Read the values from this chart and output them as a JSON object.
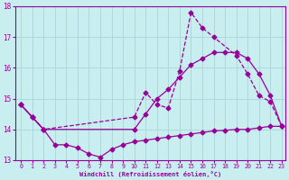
{
  "xlabel": "Windchill (Refroidissement éolien,°C)",
  "bg_color": "#c8eef0",
  "grid_color": "#aed8da",
  "line_color": "#990099",
  "xlim": [
    -0.5,
    23.3
  ],
  "ylim": [
    13,
    18
  ],
  "yticks": [
    13,
    14,
    15,
    16,
    17,
    18
  ],
  "xticks": [
    0,
    1,
    2,
    3,
    4,
    5,
    6,
    7,
    8,
    9,
    10,
    11,
    12,
    13,
    14,
    15,
    16,
    17,
    18,
    19,
    20,
    21,
    22,
    23
  ],
  "series1_x": [
    0,
    1,
    2,
    10,
    11,
    12,
    13,
    14,
    15,
    16,
    17,
    19,
    20,
    21,
    22,
    23
  ],
  "series1_y": [
    14.8,
    14.4,
    14.0,
    14.4,
    15.2,
    14.8,
    14.7,
    15.9,
    17.8,
    17.3,
    17.0,
    16.4,
    15.8,
    15.1,
    14.9,
    14.1
  ],
  "series2_x": [
    0,
    1,
    2,
    10,
    11,
    12,
    13,
    14,
    15,
    16,
    17,
    18,
    19,
    20,
    21,
    22,
    23
  ],
  "series2_y": [
    14.8,
    14.4,
    14.0,
    14.0,
    14.5,
    15.0,
    15.3,
    15.7,
    16.1,
    16.3,
    16.5,
    16.5,
    16.5,
    16.3,
    15.8,
    15.1,
    14.1
  ],
  "series3_x": [
    0,
    1,
    2,
    3,
    4,
    5,
    6,
    7,
    8,
    9,
    10,
    11,
    12,
    13,
    14,
    15,
    16,
    17,
    18,
    19,
    20,
    21,
    22,
    23
  ],
  "series3_y": [
    14.8,
    14.4,
    14.0,
    13.5,
    13.5,
    13.4,
    13.2,
    13.1,
    13.35,
    13.5,
    13.6,
    13.65,
    13.7,
    13.75,
    13.8,
    13.85,
    13.9,
    13.95,
    13.97,
    14.0,
    14.0,
    14.05,
    14.1,
    14.1
  ]
}
